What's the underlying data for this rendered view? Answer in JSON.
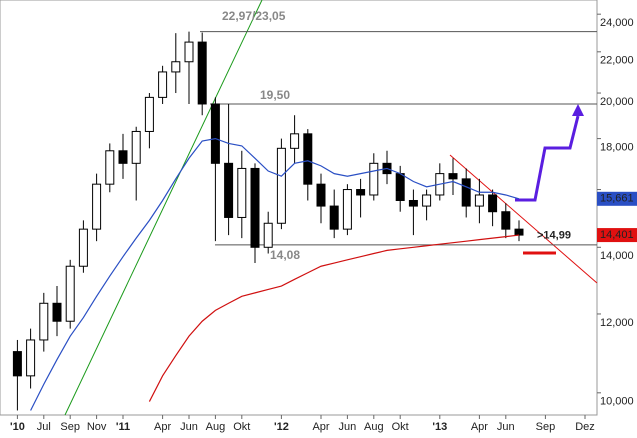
{
  "chart_data": {
    "type": "candlestick",
    "categories": [
      "'10",
      null,
      "Jul",
      null,
      "Sep",
      null,
      "Nov",
      null,
      "'11",
      null,
      null,
      "Apr",
      null,
      "Jun",
      null,
      "Aug",
      null,
      "Okt",
      null,
      null,
      "'12",
      null,
      null,
      "Apr",
      null,
      "Jun",
      null,
      "Aug",
      null,
      "Okt",
      null,
      null,
      "'13",
      null,
      null,
      "Apr",
      null,
      "Jun",
      null,
      null,
      "Sep",
      null,
      null,
      "Dez"
    ],
    "open": [
      11.0,
      10.4,
      11.3,
      12.3,
      11.8,
      13.4,
      14.6,
      16.2,
      17.5,
      17.0,
      18.3,
      19.8,
      21.0,
      21.5,
      22.5,
      19.5,
      17.0,
      15.0,
      16.8,
      14.0,
      14.8,
      17.6,
      18.2,
      16.2,
      15.4,
      14.6,
      16.0,
      15.8,
      17.0,
      16.6,
      15.6,
      15.4,
      15.8,
      16.6,
      16.4,
      15.4,
      15.8,
      15.2,
      14.6,
      null,
      null,
      null,
      null,
      null
    ],
    "high": [
      11.3,
      11.6,
      12.6,
      12.8,
      13.6,
      14.9,
      16.6,
      17.8,
      18.2,
      18.5,
      20.0,
      21.3,
      22.97,
      23.05,
      23.0,
      19.8,
      19.5,
      17.5,
      17.0,
      15.2,
      18.0,
      19.0,
      18.4,
      16.6,
      16.0,
      16.2,
      16.4,
      17.4,
      17.5,
      16.9,
      16.0,
      16.0,
      17.0,
      17.2,
      16.8,
      16.4,
      16.0,
      15.5,
      14.9,
      null,
      null,
      null,
      null,
      null
    ],
    "low": [
      9.6,
      10.1,
      11.0,
      11.4,
      11.6,
      13.2,
      14.2,
      15.9,
      16.4,
      15.6,
      17.6,
      19.5,
      20.0,
      19.5,
      19.0,
      14.2,
      14.4,
      14.3,
      13.5,
      13.8,
      14.6,
      17.0,
      15.6,
      14.8,
      14.3,
      14.4,
      15.0,
      15.6,
      16.2,
      15.2,
      14.4,
      14.9,
      15.6,
      15.8,
      15.0,
      14.8,
      14.7,
      14.3,
      14.2,
      null,
      null,
      null,
      null,
      null
    ],
    "close": [
      10.4,
      11.3,
      12.3,
      11.8,
      13.4,
      14.6,
      16.2,
      17.5,
      17.0,
      18.3,
      19.8,
      21.0,
      21.5,
      22.5,
      19.5,
      17.0,
      15.0,
      16.8,
      14.0,
      14.8,
      17.6,
      18.2,
      16.2,
      15.4,
      14.6,
      16.0,
      15.8,
      17.0,
      16.6,
      15.6,
      15.4,
      15.8,
      16.6,
      16.4,
      15.4,
      15.8,
      15.2,
      14.6,
      14.401,
      null,
      null,
      null,
      null,
      null
    ],
    "series": [
      {
        "color": "#2a4fc4",
        "values": [
          null,
          9.6,
          10.2,
          10.8,
          11.4,
          11.9,
          12.5,
          13.1,
          13.7,
          14.3,
          14.9,
          15.6,
          16.4,
          17.2,
          17.9,
          18.0,
          17.8,
          17.7,
          17.2,
          16.7,
          16.5,
          17.0,
          17.1,
          16.9,
          16.6,
          16.5,
          16.6,
          16.7,
          16.8,
          16.6,
          16.3,
          16.1,
          16.2,
          16.3,
          16.1,
          15.9,
          15.9,
          15.8,
          15.661,
          null,
          null,
          null,
          null,
          null
        ]
      },
      {
        "color": "#d01010",
        "values": [
          null,
          null,
          null,
          null,
          null,
          null,
          null,
          null,
          null,
          null,
          9.8,
          10.4,
          10.9,
          11.4,
          11.8,
          12.1,
          12.3,
          12.5,
          12.6,
          12.7,
          12.8,
          13.0,
          13.2,
          13.4,
          13.5,
          13.6,
          13.7,
          13.8,
          13.9,
          13.95,
          14.0,
          14.05,
          14.1,
          14.15,
          14.2,
          14.25,
          14.3,
          14.35,
          14.401,
          null,
          null,
          null,
          null,
          null
        ]
      }
    ],
    "levels": [
      {
        "value": 23.05,
        "label": "22,97/23,05"
      },
      {
        "value": 19.5,
        "label": "19,50"
      },
      {
        "value": 14.08,
        "label": "14,08"
      }
    ],
    "target": {
      "value": 14.99,
      "label": ">14,99"
    },
    "price_tags": [
      {
        "value": 15.661,
        "label": "15,661",
        "color": "#2a4fc4"
      },
      {
        "value": 14.401,
        "label": "14,401",
        "color": "#e01010"
      }
    ],
    "log_scale": true,
    "ylim": [
      9.5,
      24.8
    ],
    "yticks": [
      {
        "value": 10,
        "label": "10,000"
      },
      {
        "value": 12,
        "label": "12,000"
      },
      {
        "value": 14,
        "label": "14,000"
      },
      {
        "value": 16,
        "label": "16,000"
      },
      {
        "value": 18,
        "label": "18,000"
      },
      {
        "value": 20,
        "label": "20,000"
      },
      {
        "value": 22,
        "label": "22,000"
      },
      {
        "value": 24,
        "label": "24,000"
      }
    ]
  }
}
